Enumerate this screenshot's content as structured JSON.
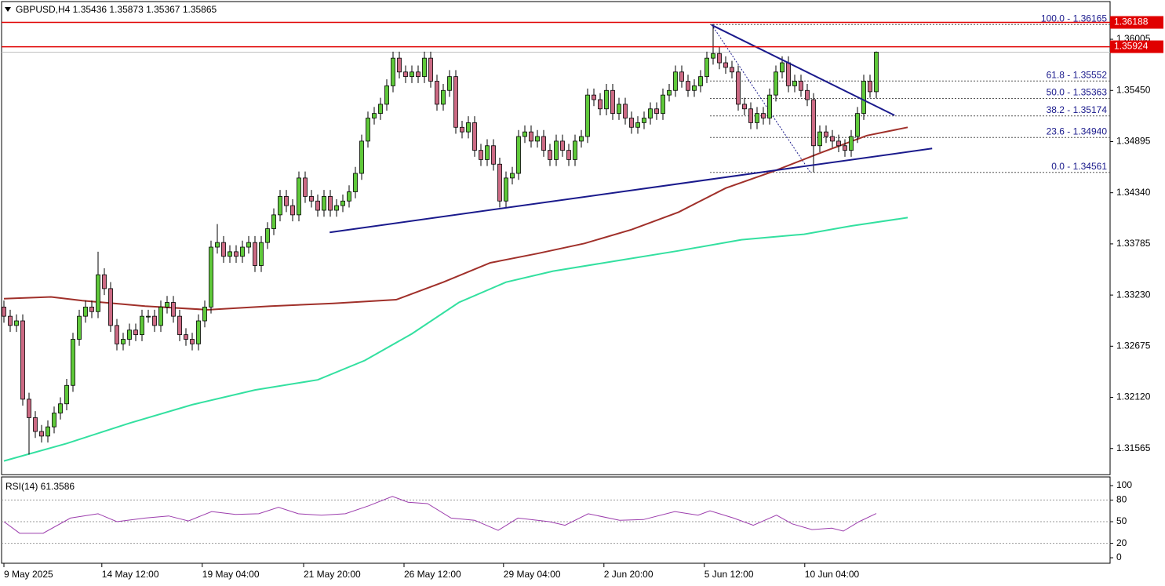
{
  "chart_data": [
    {
      "type": "candlestick",
      "title": "GBPUSD,H4  1.35436 1.35873 1.35367 1.35865",
      "up_color": "#5fc93a",
      "down_color": "#cc6a84",
      "xlim": [
        -0.375,
        176.25
      ],
      "ylim": [
        1.31282,
        1.36414
      ],
      "yticks": [
        1.36005,
        {
          "value": 1.3545,
          "label": "1.35450"
        },
        1.34895,
        {
          "value": 1.3434,
          "label": "1.34340"
        },
        1.33785,
        {
          "value": 1.3323,
          "label": "1.33230"
        },
        1.32675,
        {
          "value": 1.3212,
          "label": "1.32120"
        },
        1.31565
      ],
      "xticks": [
        {
          "value": 0,
          "label": "9 May 2025"
        },
        {
          "value": 15.6,
          "label": "14 May 12:00"
        },
        {
          "value": 31.6,
          "label": "19 May 04:00"
        },
        {
          "value": 47.75,
          "label": "21 May 20:00"
        },
        {
          "value": 63.75,
          "label": "26 May 12:00"
        },
        {
          "value": 79.6,
          "label": "29 May 04:00"
        },
        {
          "value": 95.6,
          "label": "2 Jun 20:00"
        },
        {
          "value": 111.6,
          "label": "5 Jun 12:00"
        },
        {
          "value": 127.6,
          "label": "10 Jun 04:00"
        }
      ],
      "open": [
        1.331,
        1.33,
        1.329,
        1.3295,
        1.321,
        1.319,
        1.3175,
        1.317,
        1.318,
        1.3195,
        1.3205,
        1.3225,
        1.3275,
        1.33,
        1.331,
        1.3305,
        1.3345,
        1.333,
        1.329,
        1.327,
        1.3275,
        1.3285,
        1.328,
        1.33,
        1.33,
        1.329,
        1.331,
        1.3315,
        1.33,
        1.328,
        1.3275,
        1.327,
        1.3295,
        1.331,
        1.3375,
        1.338,
        1.3365,
        1.337,
        1.3365,
        1.3375,
        1.338,
        1.3355,
        1.338,
        1.3395,
        1.341,
        1.343,
        1.342,
        1.341,
        1.345,
        1.343,
        1.3425,
        1.3415,
        1.343,
        1.3415,
        1.342,
        1.3425,
        1.3435,
        1.3455,
        1.349,
        1.3515,
        1.352,
        1.353,
        1.355,
        1.358,
        1.3565,
        1.356,
        1.3565,
        1.356,
        1.358,
        1.3555,
        1.353,
        1.3545,
        1.356,
        1.3505,
        1.35,
        1.351,
        1.348,
        1.347,
        1.3485,
        1.3465,
        1.3425,
        1.345,
        1.3455,
        1.3495,
        1.35,
        1.349,
        1.3495,
        1.348,
        1.347,
        1.349,
        1.348,
        1.347,
        1.349,
        1.3495,
        1.354,
        1.3535,
        1.3525,
        1.3545,
        1.352,
        1.353,
        1.3515,
        1.3505,
        1.351,
        1.3515,
        1.3525,
        1.352,
        1.354,
        1.3545,
        1.3565,
        1.3555,
        1.3545,
        1.355,
        1.356,
        1.358,
        1.3585,
        1.3575,
        1.357,
        1.3565,
        1.353,
        1.3525,
        1.351,
        1.352,
        1.3515,
        1.354,
        1.3565,
        1.3575,
        1.355,
        1.3555,
        1.3545,
        1.3535,
        1.3485,
        1.35,
        1.3495,
        1.349,
        1.3485,
        1.348,
        1.3495,
        1.352,
        1.3555,
        1.35436
      ],
      "high": [
        1.3317,
        1.3307,
        1.3302,
        1.3302,
        1.3217,
        1.3197,
        1.3182,
        1.3187,
        1.3202,
        1.3212,
        1.3232,
        1.3282,
        1.3307,
        1.3317,
        1.3317,
        1.337,
        1.3352,
        1.3337,
        1.3297,
        1.3282,
        1.3292,
        1.3292,
        1.3307,
        1.3307,
        1.3307,
        1.3317,
        1.3322,
        1.3322,
        1.3307,
        1.3287,
        1.3282,
        1.3302,
        1.3317,
        1.3382,
        1.34,
        1.3387,
        1.3377,
        1.3377,
        1.3382,
        1.3387,
        1.3387,
        1.3387,
        1.3402,
        1.3417,
        1.3437,
        1.3437,
        1.3427,
        1.3457,
        1.3457,
        1.3437,
        1.3432,
        1.3437,
        1.3437,
        1.3427,
        1.3432,
        1.3442,
        1.3462,
        1.3497,
        1.3522,
        1.3527,
        1.3537,
        1.3557,
        1.3587,
        1.3587,
        1.3572,
        1.3572,
        1.3572,
        1.3587,
        1.3587,
        1.3562,
        1.3552,
        1.3567,
        1.3567,
        1.3512,
        1.3517,
        1.3517,
        1.3487,
        1.3492,
        1.3492,
        1.3472,
        1.3457,
        1.3462,
        1.3502,
        1.3507,
        1.3507,
        1.3502,
        1.3502,
        1.3487,
        1.3497,
        1.3497,
        1.3487,
        1.3497,
        1.3502,
        1.3547,
        1.3547,
        1.3542,
        1.3552,
        1.3552,
        1.3537,
        1.3537,
        1.3522,
        1.3517,
        1.3522,
        1.3532,
        1.3532,
        1.3547,
        1.3552,
        1.3572,
        1.3572,
        1.3562,
        1.3557,
        1.3567,
        1.3587,
        1.3617,
        1.3592,
        1.3582,
        1.3577,
        1.3572,
        1.3537,
        1.3532,
        1.3527,
        1.3527,
        1.3547,
        1.3572,
        1.3582,
        1.3582,
        1.3562,
        1.3562,
        1.3552,
        1.3542,
        1.3507,
        1.3507,
        1.3502,
        1.3497,
        1.3492,
        1.3502,
        1.3527,
        1.3562,
        1.3562,
        1.35873
      ],
      "low": [
        1.3293,
        1.3283,
        1.3283,
        1.3203,
        1.315,
        1.3168,
        1.3163,
        1.3163,
        1.3173,
        1.3188,
        1.3198,
        1.3218,
        1.3268,
        1.3293,
        1.3298,
        1.3298,
        1.3323,
        1.3283,
        1.3263,
        1.3263,
        1.3268,
        1.3273,
        1.3273,
        1.3293,
        1.3283,
        1.3283,
        1.3303,
        1.3293,
        1.3273,
        1.3268,
        1.3263,
        1.3263,
        1.3288,
        1.3303,
        1.3368,
        1.3358,
        1.3358,
        1.3358,
        1.3358,
        1.3368,
        1.3348,
        1.3348,
        1.3373,
        1.3388,
        1.3403,
        1.3413,
        1.3403,
        1.3403,
        1.3423,
        1.3418,
        1.3408,
        1.3408,
        1.3408,
        1.3408,
        1.3413,
        1.3418,
        1.3428,
        1.3448,
        1.3483,
        1.3508,
        1.3513,
        1.3523,
        1.3543,
        1.3558,
        1.3553,
        1.3553,
        1.3553,
        1.3553,
        1.3548,
        1.3523,
        1.3523,
        1.3538,
        1.3498,
        1.3493,
        1.3493,
        1.3473,
        1.3463,
        1.3463,
        1.3458,
        1.3418,
        1.3418,
        1.3443,
        1.3448,
        1.3488,
        1.3483,
        1.3483,
        1.3473,
        1.3463,
        1.3463,
        1.3473,
        1.3463,
        1.3463,
        1.3483,
        1.3488,
        1.3528,
        1.3518,
        1.3518,
        1.3513,
        1.3513,
        1.3508,
        1.3498,
        1.3498,
        1.3503,
        1.3508,
        1.3513,
        1.3513,
        1.3533,
        1.3538,
        1.3548,
        1.3538,
        1.3538,
        1.3543,
        1.3553,
        1.3573,
        1.3568,
        1.3563,
        1.3558,
        1.3523,
        1.3518,
        1.3503,
        1.3503,
        1.3508,
        1.3508,
        1.3533,
        1.3558,
        1.3543,
        1.3543,
        1.3538,
        1.3528,
        1.34561,
        1.3478,
        1.3488,
        1.3483,
        1.3478,
        1.3473,
        1.3473,
        1.3488,
        1.3513,
        1.3537,
        1.35367
      ],
      "close": [
        1.33,
        1.329,
        1.3295,
        1.321,
        1.319,
        1.3175,
        1.317,
        1.318,
        1.3195,
        1.3205,
        1.3225,
        1.3275,
        1.33,
        1.331,
        1.3305,
        1.3345,
        1.333,
        1.329,
        1.327,
        1.3275,
        1.3285,
        1.328,
        1.33,
        1.33,
        1.329,
        1.331,
        1.3315,
        1.33,
        1.328,
        1.3275,
        1.327,
        1.3295,
        1.331,
        1.3375,
        1.338,
        1.3365,
        1.337,
        1.3365,
        1.3375,
        1.338,
        1.3355,
        1.338,
        1.3395,
        1.341,
        1.343,
        1.342,
        1.341,
        1.345,
        1.343,
        1.3425,
        1.3415,
        1.343,
        1.3415,
        1.342,
        1.3425,
        1.3435,
        1.3455,
        1.349,
        1.3515,
        1.352,
        1.353,
        1.355,
        1.358,
        1.3565,
        1.356,
        1.3565,
        1.356,
        1.358,
        1.3555,
        1.353,
        1.3545,
        1.356,
        1.3505,
        1.35,
        1.351,
        1.348,
        1.347,
        1.3485,
        1.3465,
        1.3425,
        1.345,
        1.3455,
        1.3495,
        1.35,
        1.349,
        1.3495,
        1.348,
        1.347,
        1.349,
        1.348,
        1.347,
        1.349,
        1.3495,
        1.354,
        1.3535,
        1.3525,
        1.3545,
        1.352,
        1.353,
        1.3515,
        1.3505,
        1.351,
        1.3515,
        1.3525,
        1.352,
        1.354,
        1.3545,
        1.3565,
        1.3555,
        1.3545,
        1.355,
        1.356,
        1.358,
        1.3585,
        1.3575,
        1.357,
        1.3565,
        1.353,
        1.3525,
        1.351,
        1.352,
        1.3515,
        1.354,
        1.3565,
        1.3575,
        1.355,
        1.3555,
        1.3545,
        1.3535,
        1.3485,
        1.35,
        1.3495,
        1.349,
        1.3485,
        1.348,
        1.3495,
        1.352,
        1.3555,
        1.35436,
        1.35865
      ],
      "series": [
        {
          "color": "#a0302a",
          "x": [
            0,
            7.5,
            12.5,
            22.5,
            32.5,
            42.5,
            52.5,
            62.5,
            70,
            77.5,
            85,
            92.5,
            100,
            107.5,
            115,
            122.5,
            130,
            137.5,
            144
          ],
          "values": [
            1.3319,
            1.3321,
            1.3317,
            1.3311,
            1.3307,
            1.3311,
            1.3314,
            1.3318,
            1.3337,
            1.3358,
            1.3368,
            1.3379,
            1.3394,
            1.3413,
            1.3439,
            1.3457,
            1.3477,
            1.3496,
            1.3505
          ]
        },
        {
          "color": "#33e0a0",
          "x": [
            0,
            10,
            20,
            30,
            40,
            50,
            57.5,
            65,
            72.5,
            80,
            87.5,
            97.5,
            107.5,
            117.5,
            127.5,
            135,
            144
          ],
          "values": [
            1.3143,
            1.3162,
            1.3184,
            1.3204,
            1.322,
            1.3231,
            1.3252,
            1.3281,
            1.3315,
            1.3337,
            1.3349,
            1.336,
            1.3371,
            1.3383,
            1.3389,
            1.3398,
            1.3407
          ]
        }
      ],
      "trendlines": [
        {
          "color": "#1a1a8c",
          "x": [
            51.9,
            147.9
          ],
          "values": [
            1.3391,
            1.3482
          ]
        },
        {
          "color": "#1a1a8c",
          "x": [
            112.75,
            141.9
          ],
          "values": [
            1.3616,
            1.3518
          ]
        }
      ],
      "hlines": [
        {
          "value": 1.36188,
          "color": "#e00000"
        },
        {
          "value": 1.35924,
          "color": "#e00000"
        }
      ],
      "last_price": {
        "value": 1.35865,
        "color": "#c0c0c0"
      },
      "fibonacci": {
        "x_start": 112.5,
        "color": "#1a1a8c",
        "prices": [
          1.36165,
          1.35552,
          1.35363,
          1.35174,
          1.3494,
          1.34561
        ],
        "labels": [
          "100.0 - 1.36165",
          "61.8 - 1.35552",
          "50.0 - 1.35363",
          "38.2 - 1.35174",
          "23.6 - 1.34940",
          "0.0 - 1.34561"
        ],
        "diagonal_x": [
          112.75,
          128.5
        ],
        "diagonal_values": [
          1.36165,
          1.34561
        ]
      }
    },
    {
      "type": "line",
      "title": "RSI(14) 61.3586",
      "color": "#9c3dad",
      "xlim": [
        -0.375,
        176.25
      ],
      "ylim": [
        -7.6,
        112
      ],
      "yticks": [
        100,
        80,
        50,
        20,
        0
      ],
      "levels": [
        80,
        50,
        20
      ],
      "x": [
        0,
        2.5,
        6.25,
        10.6,
        15,
        18,
        22.5,
        26.25,
        29.4,
        33.1,
        36.9,
        40.6,
        43.75,
        46.9,
        50.6,
        54.4,
        58.1,
        61.9,
        64.4,
        67.5,
        71.25,
        75,
        78.75,
        81.9,
        86.9,
        89.4,
        93.1,
        98.1,
        101.9,
        106.9,
        110.6,
        112.5,
        116.25,
        119.4,
        123.1,
        125.6,
        128.75,
        131.9,
        133.75,
        136.25,
        139
      ],
      "values": [
        50,
        34,
        34,
        55,
        61,
        50,
        55,
        58,
        51,
        64,
        60,
        61,
        70,
        61,
        59,
        61,
        72,
        85,
        77,
        75,
        55,
        52,
        38,
        55,
        50,
        45,
        61,
        52,
        53,
        64,
        59,
        65,
        55,
        45,
        59,
        47,
        39,
        41,
        37,
        50,
        61.3586
      ]
    }
  ]
}
